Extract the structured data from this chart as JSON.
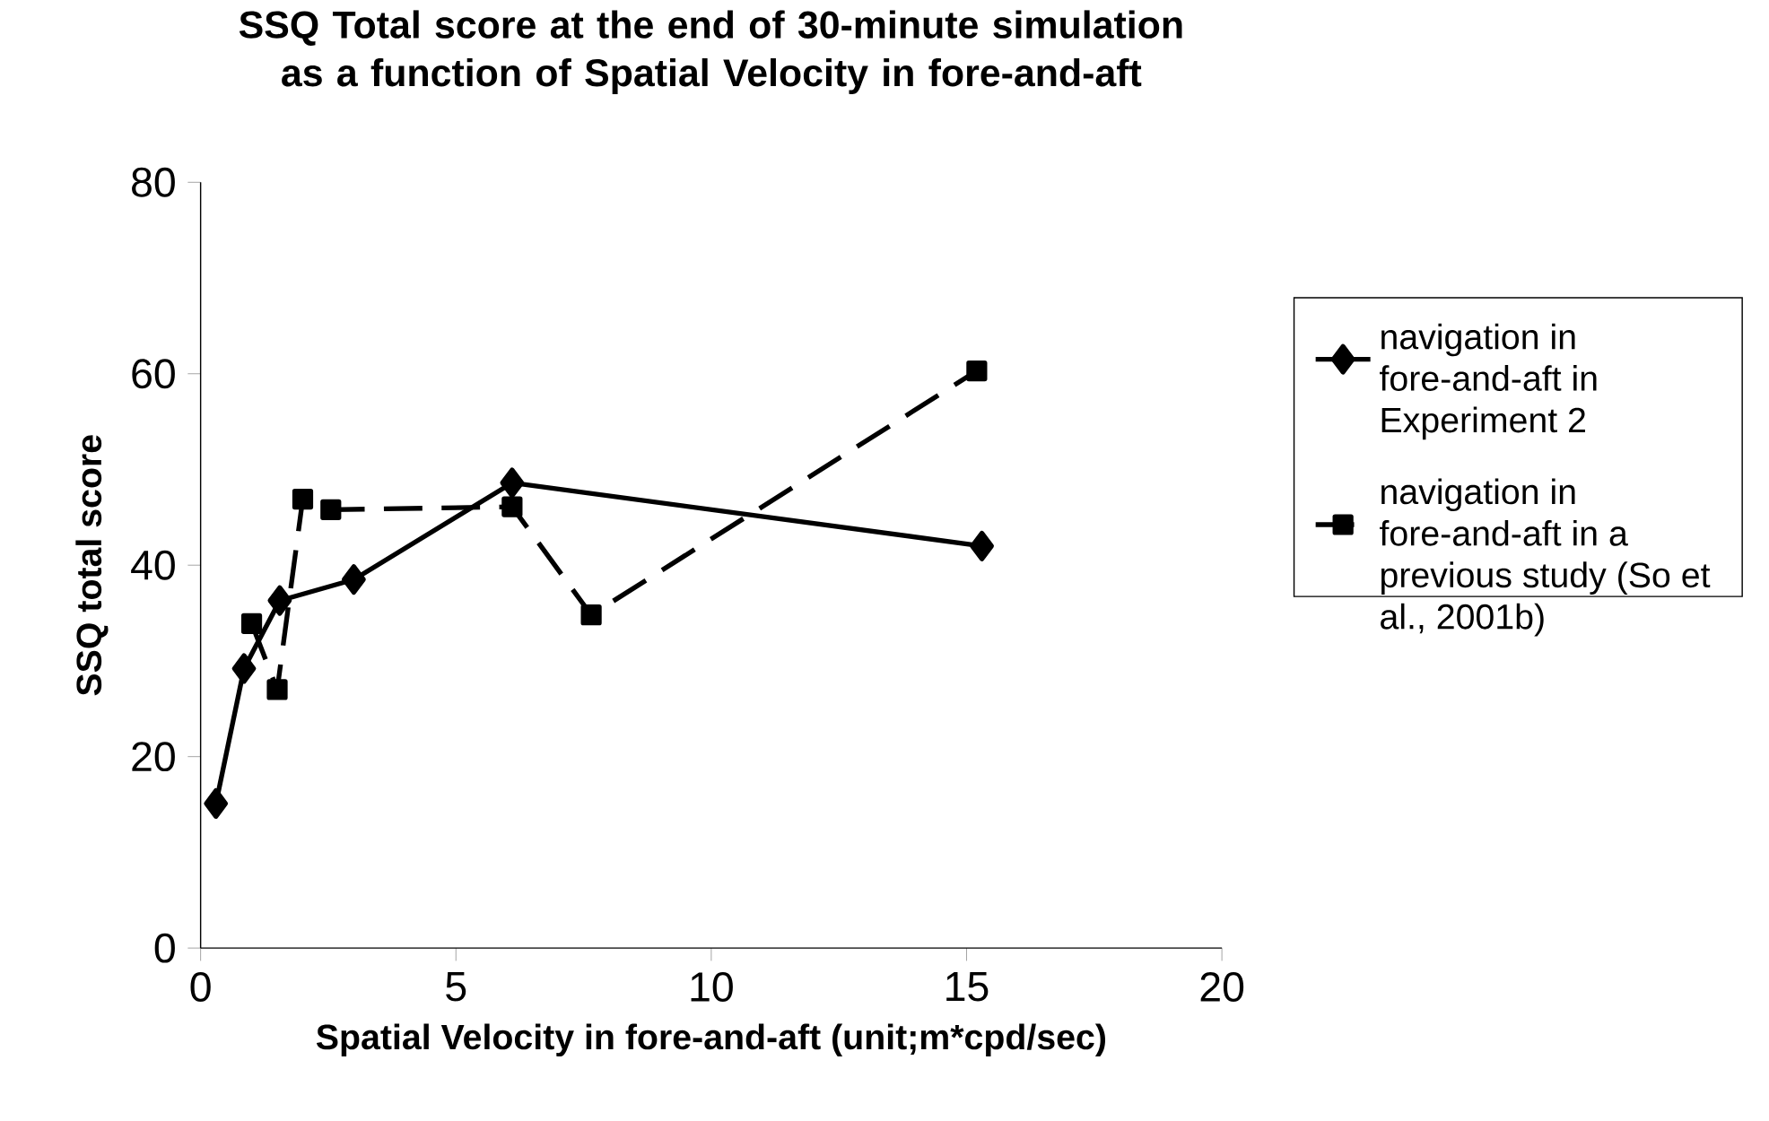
{
  "chart_data": {
    "type": "line",
    "title": "SSQ Total score at the end of 30-minute simulation as a function of Spatial Velocity in fore-and-aft",
    "xlabel": "Spatial Velocity in fore-and-aft (unit;m*cpd/sec)",
    "ylabel": "SSQ total score",
    "xlim": [
      0,
      20
    ],
    "xticks": [
      0,
      5,
      10,
      15,
      20
    ],
    "ylim": [
      0,
      80
    ],
    "yticks": [
      0,
      20,
      40,
      60,
      80
    ],
    "grid": false,
    "legend": "right",
    "series": [
      {
        "name": "navigation in fore-and-aft in Experiment 2",
        "color": "#000000",
        "marker": "diamond",
        "line_style": "solid",
        "x": [
          0.3,
          0.85,
          1.55,
          3.0,
          6.1,
          15.3
        ],
        "values": [
          15.1,
          29.2,
          36.3,
          38.5,
          48.6,
          42.0
        ]
      },
      {
        "name": "navigation in fore-and-aft in a previous study (So et al., 2001b)",
        "color": "#000000",
        "marker": "square",
        "line_style": "dashed",
        "x": [
          1.0,
          1.5,
          2.0,
          2.55,
          6.1,
          7.65,
          15.2
        ],
        "values": [
          33.9,
          27.0,
          46.9,
          45.8,
          46.1,
          34.8,
          60.3
        ]
      }
    ]
  }
}
